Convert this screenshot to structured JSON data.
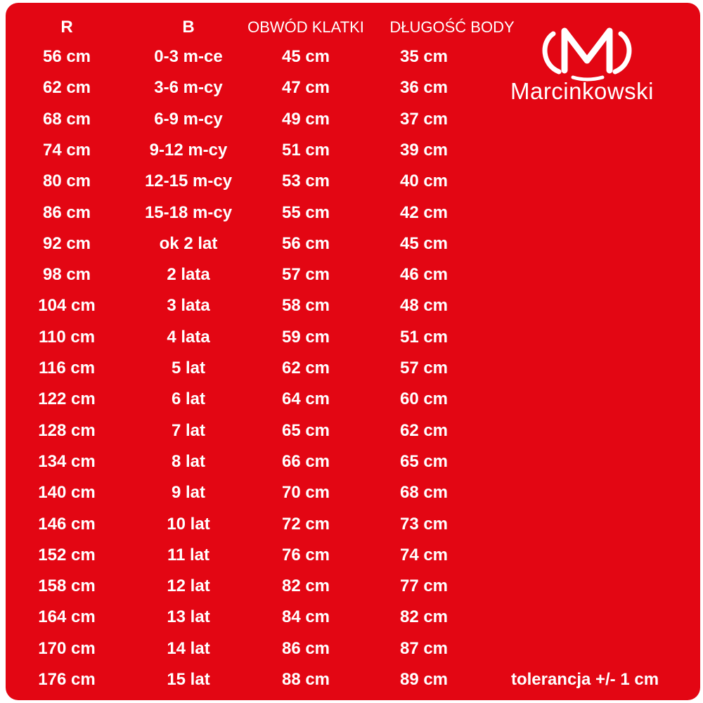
{
  "header": [
    "R",
    "B",
    "OBWÓD KLATKI",
    "DŁUGOŚĆ BODY"
  ],
  "rows": [
    [
      "56 cm",
      "0-3 m-ce",
      "45 cm",
      "35 cm"
    ],
    [
      "62 cm",
      "3-6 m-cy",
      "47 cm",
      "36 cm"
    ],
    [
      "68 cm",
      "6-9 m-cy",
      "49 cm",
      "37 cm"
    ],
    [
      "74 cm",
      "9-12 m-cy",
      "51 cm",
      "39 cm"
    ],
    [
      "80 cm",
      "12-15 m-cy",
      "53 cm",
      "40 cm"
    ],
    [
      "86 cm",
      "15-18 m-cy",
      "55 cm",
      "42 cm"
    ],
    [
      "92 cm",
      "ok 2 lat",
      "56 cm",
      "45 cm"
    ],
    [
      "98 cm",
      "2 lata",
      "57 cm",
      "46 cm"
    ],
    [
      "104 cm",
      "3 lata",
      "58 cm",
      "48 cm"
    ],
    [
      "110 cm",
      "4 lata",
      "59 cm",
      "51 cm"
    ],
    [
      "116 cm",
      "5 lat",
      "62 cm",
      "57 cm"
    ],
    [
      "122 cm",
      "6 lat",
      "64 cm",
      "60 cm"
    ],
    [
      "128 cm",
      "7 lat",
      "65 cm",
      "62 cm"
    ],
    [
      "134 cm",
      "8 lat",
      "66 cm",
      "65 cm"
    ],
    [
      "140 cm",
      "9 lat",
      "70 cm",
      "68 cm"
    ],
    [
      "146 cm",
      "10 lat",
      "72 cm",
      "73 cm"
    ],
    [
      "152 cm",
      "11 lat",
      "76 cm",
      "74 cm"
    ],
    [
      "158 cm",
      "12 lat",
      "82 cm",
      "77 cm"
    ],
    [
      "164 cm",
      "13 lat",
      "84 cm",
      "82 cm"
    ],
    [
      "170 cm",
      "14 lat",
      "86 cm",
      "87 cm"
    ],
    [
      "176 cm",
      "15 lat",
      "88 cm",
      "89 cm"
    ]
  ],
  "brand": "Marcinkowski",
  "note": "tolerancja +/- 1 cm"
}
